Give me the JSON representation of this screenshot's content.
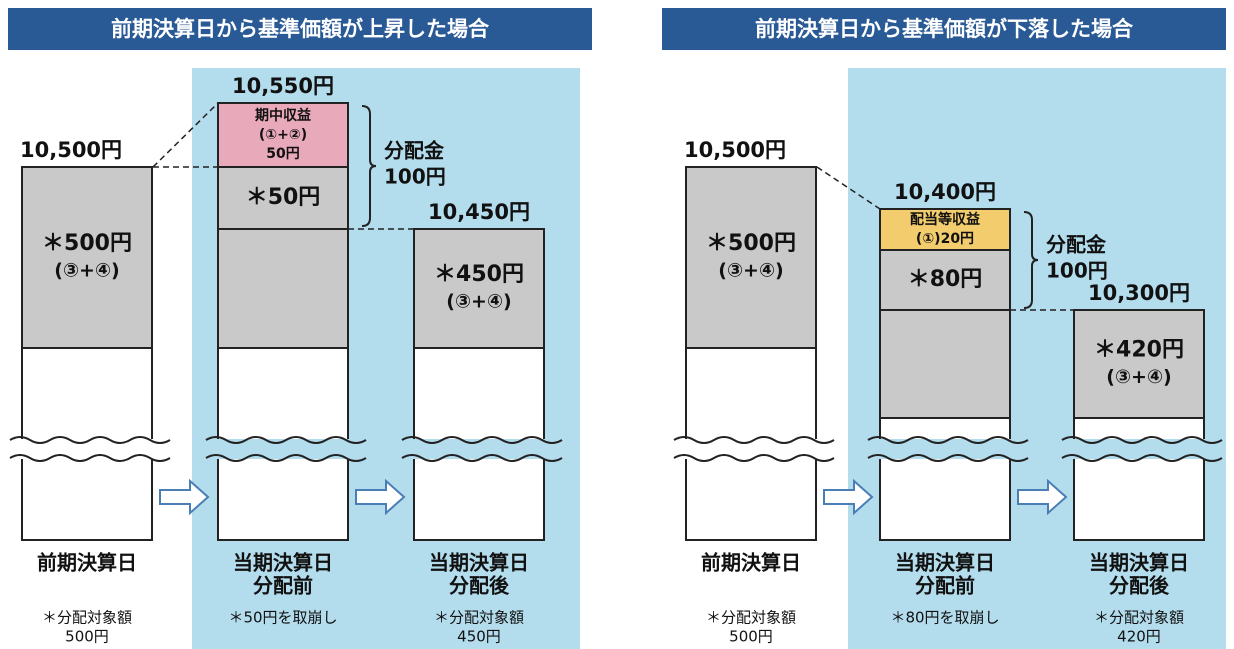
{
  "panels": [
    {
      "title": "前期決算日から基準価額が上昇した場合",
      "columns": [
        {
          "price": "10,500円",
          "inner": [
            "＊500円",
            "(③+④)"
          ],
          "label": [
            "前期決算日"
          ],
          "note": [
            "＊分配対象額",
            "500円"
          ]
        },
        {
          "price": "10,550円",
          "highlight": [
            "期中収益",
            "(①+②)",
            "50円"
          ],
          "inner": [
            "＊50円"
          ],
          "label": [
            "当期決算日",
            "分配前"
          ],
          "note": [
            "＊50円を取崩し"
          ]
        },
        {
          "price": "10,450円",
          "inner": [
            "＊450円",
            "(③+④)"
          ],
          "label": [
            "当期決算日",
            "分配後"
          ],
          "note": [
            "＊分配対象額",
            "450円"
          ]
        }
      ],
      "distribution": [
        "分配金",
        "100円"
      ]
    },
    {
      "title": "前期決算日から基準価額が下落した場合",
      "columns": [
        {
          "price": "10,500円",
          "inner": [
            "＊500円",
            "(③+④)"
          ],
          "label": [
            "前期決算日"
          ],
          "note": [
            "＊分配対象額",
            "500円"
          ]
        },
        {
          "price": "10,400円",
          "highlight": [
            "配当等収益",
            "(①)20円"
          ],
          "inner": [
            "＊80円"
          ],
          "label": [
            "当期決算日",
            "分配前"
          ],
          "note": [
            "＊80円を取崩し"
          ]
        },
        {
          "price": "10,300円",
          "inner": [
            "＊420円",
            "(③+④)"
          ],
          "label": [
            "当期決算日",
            "分配後"
          ],
          "note": [
            "＊分配対象額",
            "420円"
          ]
        }
      ],
      "distribution": [
        "分配金",
        "100円"
      ]
    }
  ]
}
